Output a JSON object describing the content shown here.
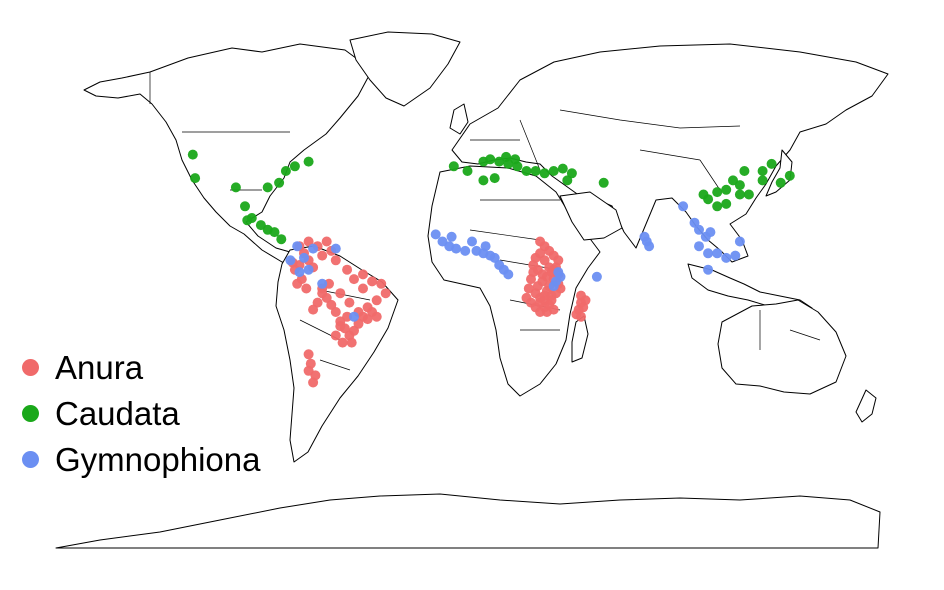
{
  "colors": {
    "Anura": "#f06a6a",
    "Caudata": "#1aa81a",
    "Gymnophiona": "#6b8ff2"
  },
  "legend": [
    {
      "label": "Anura",
      "color": "#f06a6a"
    },
    {
      "label": "Caudata",
      "color": "#1aa81a"
    },
    {
      "label": "Gymnophiona",
      "color": "#6b8ff2"
    }
  ],
  "points": {
    "Anura": [
      [
        -74,
        5
      ],
      [
        -72,
        2
      ],
      [
        -76,
        0
      ],
      [
        -70,
        -1
      ],
      [
        -66,
        4
      ],
      [
        -62,
        6
      ],
      [
        -60,
        2
      ],
      [
        -55,
        -2
      ],
      [
        -52,
        -6
      ],
      [
        -48,
        -4
      ],
      [
        -44,
        -7
      ],
      [
        -40,
        -8
      ],
      [
        -38,
        -12
      ],
      [
        -42,
        -15
      ],
      [
        -46,
        -18
      ],
      [
        -48,
        -22
      ],
      [
        -50,
        -25
      ],
      [
        -52,
        -28
      ],
      [
        -54,
        -30
      ],
      [
        -56,
        -27
      ],
      [
        -58,
        -24
      ],
      [
        -60,
        -20
      ],
      [
        -62,
        -17
      ],
      [
        -64,
        -14
      ],
      [
        -66,
        -12
      ],
      [
        -68,
        -16
      ],
      [
        -70,
        -19
      ],
      [
        -72,
        -38
      ],
      [
        -71,
        -42
      ],
      [
        -72,
        -45
      ],
      [
        -70,
        -50
      ],
      [
        -69,
        -47
      ],
      [
        -66,
        -10
      ],
      [
        -63,
        -8
      ],
      [
        -58,
        -12
      ],
      [
        -54,
        -16
      ],
      [
        -50,
        -20
      ],
      [
        -46,
        -23
      ],
      [
        -44,
        -20
      ],
      [
        -42,
        -22
      ],
      [
        -78,
        -2
      ],
      [
        -75,
        -6
      ],
      [
        -73,
        -10
      ],
      [
        -77,
        -8
      ],
      [
        -79,
        1
      ],
      [
        -68,
        8
      ],
      [
        -64,
        10
      ],
      [
        -72,
        10
      ],
      [
        -76,
        8
      ],
      [
        -60,
        -30
      ],
      [
        -57,
        -33
      ],
      [
        -53,
        -33
      ],
      [
        -58,
        -26
      ],
      [
        -55,
        -22
      ],
      [
        -48,
        -10
      ],
      [
        30,
        10
      ],
      [
        32,
        8
      ],
      [
        34,
        6
      ],
      [
        36,
        4
      ],
      [
        38,
        2
      ],
      [
        37,
        -1
      ],
      [
        35,
        -3
      ],
      [
        33,
        -5
      ],
      [
        31,
        -7
      ],
      [
        29,
        -9
      ],
      [
        28,
        -12
      ],
      [
        30,
        -14
      ],
      [
        32,
        -15
      ],
      [
        34,
        -17
      ],
      [
        36,
        -19
      ],
      [
        35,
        -13
      ],
      [
        33,
        -11
      ],
      [
        31,
        -4
      ],
      [
        29,
        -2
      ],
      [
        27,
        0
      ],
      [
        28,
        3
      ],
      [
        30,
        5
      ],
      [
        32,
        2
      ],
      [
        34,
        -1
      ],
      [
        36,
        -6
      ],
      [
        38,
        -8
      ],
      [
        39,
        -10
      ],
      [
        37,
        -12
      ],
      [
        35,
        -15
      ],
      [
        32,
        -18
      ],
      [
        30,
        -20
      ],
      [
        28,
        -18
      ],
      [
        26,
        -16
      ],
      [
        24,
        -14
      ],
      [
        25,
        -10
      ],
      [
        26,
        -6
      ],
      [
        27,
        -3
      ],
      [
        48,
        -13
      ],
      [
        48,
        -16
      ],
      [
        47,
        -19
      ],
      [
        46,
        -21
      ],
      [
        48,
        -22
      ],
      [
        49,
        -18
      ],
      [
        50,
        -15
      ],
      [
        36,
        -2
      ],
      [
        38,
        -4
      ],
      [
        34,
        -9
      ],
      [
        30,
        -16
      ],
      [
        32,
        -13
      ],
      [
        33,
        -20
      ]
    ],
    "Caudata": [
      [
        -123,
        47
      ],
      [
        -122,
        37
      ],
      [
        -85,
        35
      ],
      [
        -90,
        33
      ],
      [
        -104,
        33
      ],
      [
        -82,
        40
      ],
      [
        -78,
        42
      ],
      [
        -72,
        44
      ],
      [
        -97,
        20
      ],
      [
        -99,
        19
      ],
      [
        -93,
        17
      ],
      [
        -90,
        15
      ],
      [
        -87,
        14
      ],
      [
        -84,
        11
      ],
      [
        -100,
        25
      ],
      [
        -8,
        42
      ],
      [
        -2,
        40
      ],
      [
        5,
        44
      ],
      [
        8,
        45
      ],
      [
        12,
        44
      ],
      [
        16,
        43
      ],
      [
        20,
        42
      ],
      [
        24,
        40
      ],
      [
        28,
        40
      ],
      [
        32,
        39
      ],
      [
        36,
        40
      ],
      [
        40,
        41
      ],
      [
        44,
        39
      ],
      [
        42,
        36
      ],
      [
        10,
        37
      ],
      [
        58,
        35
      ],
      [
        5,
        36
      ],
      [
        15,
        46
      ],
      [
        19,
        45
      ],
      [
        102,
        30
      ],
      [
        108,
        31
      ],
      [
        112,
        32
      ],
      [
        118,
        30
      ],
      [
        122,
        30
      ],
      [
        115,
        36
      ],
      [
        108,
        25
      ],
      [
        104,
        28
      ],
      [
        120,
        40
      ],
      [
        128,
        40
      ],
      [
        132,
        43
      ],
      [
        136,
        35
      ],
      [
        140,
        38
      ],
      [
        128,
        36
      ],
      [
        112,
        26
      ],
      [
        118,
        34
      ]
    ],
    "Gymnophiona": [
      [
        -16,
        13
      ],
      [
        -13,
        10
      ],
      [
        -10,
        8
      ],
      [
        -7,
        7
      ],
      [
        -3,
        6
      ],
      [
        2,
        6
      ],
      [
        5,
        5
      ],
      [
        8,
        4
      ],
      [
        10,
        3
      ],
      [
        12,
        0
      ],
      [
        14,
        -2
      ],
      [
        16,
        -4
      ],
      [
        -9,
        12
      ],
      [
        0,
        10
      ],
      [
        6,
        8
      ],
      [
        38,
        -3
      ],
      [
        39,
        -5
      ],
      [
        37,
        -7
      ],
      [
        36,
        -9
      ],
      [
        55,
        -5
      ],
      [
        76,
        12
      ],
      [
        77,
        10
      ],
      [
        78,
        8
      ],
      [
        93,
        25
      ],
      [
        98,
        18
      ],
      [
        100,
        15
      ],
      [
        103,
        12
      ],
      [
        105,
        14
      ],
      [
        100,
        8
      ],
      [
        104,
        5
      ],
      [
        108,
        5
      ],
      [
        112,
        3
      ],
      [
        116,
        4
      ],
      [
        104,
        -2
      ],
      [
        118,
        10
      ],
      [
        -77,
        8
      ],
      [
        -80,
        2
      ],
      [
        -74,
        3
      ],
      [
        -72,
        -2
      ],
      [
        -76,
        -3
      ],
      [
        -70,
        7
      ],
      [
        -60,
        7
      ],
      [
        -66,
        -8
      ],
      [
        -52,
        -22
      ]
    ]
  }
}
